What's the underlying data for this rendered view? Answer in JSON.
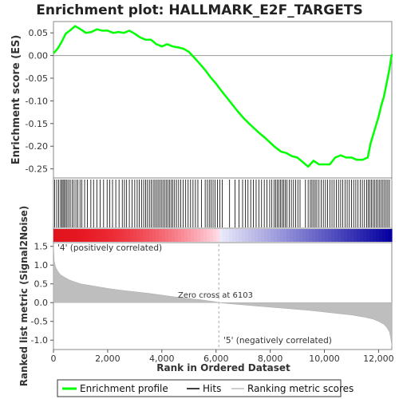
{
  "title": "Enrichment plot: HALLMARK_E2F_TARGETS",
  "colors": {
    "enrichment_line": "#00ff00",
    "hits": "#000000",
    "ranking_fill": "#bebebe",
    "positive_label": "#e8141b",
    "negative_label": "#2c2cd6",
    "frame": "#888888"
  },
  "legend": {
    "items": [
      {
        "label": "Enrichment profile",
        "color": "#00ff00",
        "kind": "line"
      },
      {
        "label": "Hits",
        "color": "#000000",
        "kind": "line"
      },
      {
        "label": "Ranking metric scores",
        "color": "#bebebe",
        "kind": "line"
      }
    ]
  },
  "chart_data": [
    {
      "type": "line",
      "panel": "enrichment",
      "ylabel": "Enrichment score (ES)",
      "xlim": [
        0,
        12488
      ],
      "ylim": [
        -0.27,
        0.075
      ],
      "yticks": [
        0.05,
        0.0,
        -0.05,
        -0.1,
        -0.15,
        -0.2,
        -0.25
      ],
      "ytick_labels": [
        "0.05",
        "0.00",
        "-0.05",
        "-0.10",
        "-0.15",
        "-0.20",
        "-0.25"
      ],
      "grid": false,
      "series": [
        {
          "x": [
            0,
            150,
            300,
            450,
            600,
            800,
            1000,
            1200,
            1400,
            1600,
            1800,
            2000,
            2200,
            2400,
            2600,
            2800,
            3000,
            3200,
            3400,
            3600,
            3800,
            4000,
            4200,
            4400,
            4600,
            4800,
            5000,
            5200,
            5400,
            5600,
            5800,
            6000,
            6200,
            6400,
            6600,
            6800,
            7000,
            7200,
            7400,
            7600,
            7800,
            8000,
            8200,
            8400,
            8600,
            8800,
            9000,
            9200,
            9400,
            9600,
            9800,
            10000,
            10200,
            10400,
            10600,
            10800,
            11000,
            11200,
            11400,
            11600,
            11700,
            11800,
            11900,
            12000,
            12100,
            12200,
            12300,
            12400,
            12488
          ],
          "y": [
            0.005,
            0.015,
            0.03,
            0.048,
            0.055,
            0.065,
            0.058,
            0.05,
            0.052,
            0.058,
            0.055,
            0.055,
            0.05,
            0.052,
            0.05,
            0.055,
            0.048,
            0.04,
            0.035,
            0.035,
            0.025,
            0.02,
            0.025,
            0.02,
            0.018,
            0.015,
            0.008,
            -0.005,
            -0.018,
            -0.032,
            -0.048,
            -0.062,
            -0.078,
            -0.093,
            -0.108,
            -0.123,
            -0.137,
            -0.149,
            -0.16,
            -0.171,
            -0.181,
            -0.192,
            -0.203,
            -0.212,
            -0.215,
            -0.222,
            -0.225,
            -0.235,
            -0.245,
            -0.232,
            -0.24,
            -0.24,
            -0.24,
            -0.225,
            -0.22,
            -0.225,
            -0.225,
            -0.23,
            -0.23,
            -0.225,
            -0.195,
            -0.175,
            -0.155,
            -0.135,
            -0.11,
            -0.09,
            -0.06,
            -0.03,
            0.003
          ]
        }
      ]
    },
    {
      "type": "bar",
      "panel": "hits",
      "hit_ranks": [
        40,
        120,
        190,
        260,
        310,
        355,
        400,
        450,
        500,
        560,
        620,
        690,
        760,
        830,
        900,
        980,
        1050,
        1150,
        1250,
        1380,
        1480,
        1600,
        1720,
        1850,
        1980,
        2080,
        2180,
        2300,
        2420,
        2540,
        2620,
        2700,
        2800,
        2900,
        3000,
        3090,
        3170,
        3250,
        3330,
        3400,
        3470,
        3540,
        3610,
        3680,
        3740,
        3800,
        3860,
        3920,
        3980,
        4040,
        4100,
        4160,
        4220,
        4280,
        4340,
        4400,
        4470,
        4540,
        4620,
        4700,
        4790,
        4880,
        4970,
        5060,
        5150,
        5240,
        5330,
        5460,
        5600,
        5680,
        5750,
        5820,
        5890,
        5960,
        6050,
        6140,
        6230,
        6500,
        6700,
        6850,
        6980,
        7080,
        7180,
        7280,
        7380,
        7480,
        7580,
        7680,
        7780,
        7880,
        7980,
        8060,
        8140,
        8200,
        8260,
        8320,
        8380,
        8440,
        8500,
        8560,
        8620,
        8700,
        8780,
        8860,
        8940,
        9020,
        9100,
        9300,
        9400,
        9480,
        9540,
        9600,
        9660,
        9720,
        9800,
        9880,
        9960,
        10040,
        10120,
        10200,
        10280,
        10360,
        10440,
        10520,
        10600,
        10680,
        10760,
        10840,
        10920,
        11000,
        11080,
        11160,
        11240,
        11320,
        11400,
        11480,
        11560,
        11620,
        11680,
        11740,
        11800,
        11860,
        11920,
        11980,
        12040,
        12100,
        12160,
        12220,
        12280,
        12340,
        12400
      ]
    },
    {
      "type": "area",
      "panel": "ranking",
      "xlabel": "Rank in Ordered Dataset",
      "ylabel": "Ranked list metric (Signal2Noise)",
      "xlim": [
        0,
        12488
      ],
      "ylim": [
        -1.25,
        1.6
      ],
      "yticks": [
        1.5,
        1.0,
        0.5,
        0.0,
        -0.5,
        -1.0
      ],
      "ytick_labels": [
        "1.5",
        "1.0",
        "0.5",
        "0.0",
        "-0.5",
        "-1.0"
      ],
      "xticks": [
        0,
        2000,
        4000,
        6000,
        8000,
        10000,
        12000
      ],
      "xtick_labels": [
        "0",
        "2,000",
        "4,000",
        "6,000",
        "8,000",
        "10,000",
        "12,000"
      ],
      "x": [
        0,
        30,
        80,
        150,
        250,
        400,
        600,
        800,
        1000,
        1500,
        2000,
        2500,
        3000,
        3500,
        4000,
        4500,
        5000,
        5500,
        6000,
        6103,
        6500,
        7000,
        7500,
        8000,
        8500,
        9000,
        9500,
        10000,
        10500,
        11000,
        11500,
        11800,
        12000,
        12200,
        12300,
        12400,
        12450,
        12488
      ],
      "values": [
        1.55,
        1.1,
        0.95,
        0.85,
        0.75,
        0.68,
        0.6,
        0.55,
        0.5,
        0.44,
        0.38,
        0.33,
        0.29,
        0.25,
        0.2,
        0.15,
        0.11,
        0.07,
        0.02,
        0.0,
        -0.03,
        -0.06,
        -0.09,
        -0.12,
        -0.15,
        -0.18,
        -0.21,
        -0.25,
        -0.29,
        -0.33,
        -0.39,
        -0.44,
        -0.5,
        -0.58,
        -0.66,
        -0.78,
        -0.95,
        -1.15
      ],
      "zero_cross_label": "Zero cross at 6103",
      "zero_cross": 6103,
      "positive_label": "'4' (positively correlated)",
      "negative_label": "'5' (negatively correlated)"
    }
  ]
}
